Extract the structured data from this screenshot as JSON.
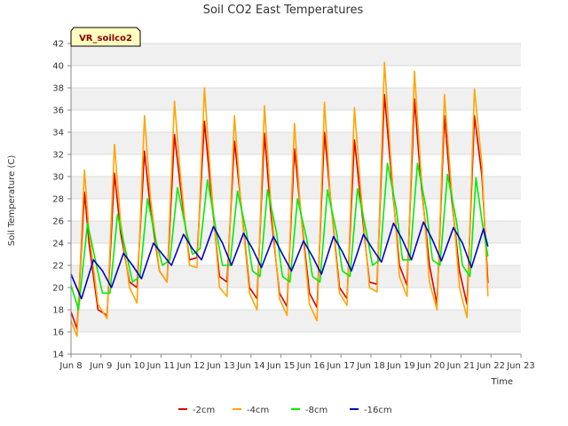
{
  "chart_data": {
    "type": "line",
    "title": "Soil CO2 East Temperatures",
    "xlabel": "Time",
    "ylabel": "Soil Temperature (C)",
    "badge": "VR_soilco2",
    "ylim": [
      14,
      42
    ],
    "yticks": [
      14,
      16,
      18,
      20,
      22,
      24,
      26,
      28,
      30,
      32,
      34,
      36,
      38,
      40,
      42
    ],
    "xlim": [
      0,
      15
    ],
    "xticks": [
      {
        "v": 0,
        "label": "Jun 8"
      },
      {
        "v": 1,
        "label": "Jun 9"
      },
      {
        "v": 2,
        "label": "Jun 10"
      },
      {
        "v": 3,
        "label": "Jun 11"
      },
      {
        "v": 4,
        "label": "Jun 12"
      },
      {
        "v": 5,
        "label": "Jun 13"
      },
      {
        "v": 6,
        "label": "Jun 14"
      },
      {
        "v": 7,
        "label": "Jun 15"
      },
      {
        "v": 8,
        "label": "Jun 16"
      },
      {
        "v": 9,
        "label": "Jun 17"
      },
      {
        "v": 10,
        "label": "Jun 18"
      },
      {
        "v": 11,
        "label": "Jun 19"
      },
      {
        "v": 12,
        "label": "Jun 20"
      },
      {
        "v": 13,
        "label": "Jun 21"
      },
      {
        "v": 14,
        "label": "Jun 22"
      },
      {
        "v": 15,
        "label": "Jun 23"
      }
    ],
    "series": [
      {
        "name": "-2cm",
        "color": "#dd0000",
        "x": [
          0,
          0.2,
          0.45,
          0.6,
          0.9,
          1.2,
          1.45,
          1.65,
          1.95,
          2.2,
          2.45,
          2.65,
          2.95,
          3.2,
          3.45,
          3.65,
          3.95,
          4.2,
          4.45,
          4.65,
          4.95,
          5.2,
          5.45,
          5.65,
          5.95,
          6.2,
          6.45,
          6.65,
          6.95,
          7.2,
          7.45,
          7.65,
          7.95,
          8.2,
          8.45,
          8.65,
          8.95,
          9.2,
          9.45,
          9.65,
          9.95,
          10.2,
          10.45,
          10.65,
          10.95,
          11.2,
          11.45,
          11.65,
          11.95,
          12.2,
          12.45,
          12.65,
          12.95,
          13.2,
          13.45,
          13.7,
          13.9
        ],
        "y": [
          17.8,
          16.3,
          28.6,
          24,
          18,
          17.5,
          30.3,
          25,
          20.5,
          20,
          32.3,
          27,
          21.5,
          20.5,
          33.8,
          29,
          22.5,
          22.7,
          35,
          29,
          21,
          20.5,
          33.2,
          28,
          20,
          19,
          33.9,
          27,
          19.5,
          18.3,
          32.5,
          27,
          19.5,
          18.2,
          34,
          28,
          20,
          19,
          33.3,
          28,
          20.5,
          20.3,
          37.4,
          31,
          22,
          20.2,
          37,
          30,
          22,
          18.5,
          35.5,
          29,
          21.5,
          18.5,
          35.5,
          30,
          20.4
        ]
      },
      {
        "name": "-4cm",
        "color": "#ffa500",
        "x": [
          0,
          0.2,
          0.45,
          0.6,
          0.9,
          1.2,
          1.45,
          1.65,
          1.95,
          2.2,
          2.45,
          2.65,
          2.95,
          3.2,
          3.45,
          3.65,
          3.95,
          4.2,
          4.45,
          4.65,
          4.95,
          5.2,
          5.45,
          5.65,
          5.95,
          6.2,
          6.45,
          6.65,
          6.95,
          7.2,
          7.45,
          7.65,
          7.95,
          8.2,
          8.45,
          8.65,
          8.95,
          9.2,
          9.45,
          9.65,
          9.95,
          10.2,
          10.45,
          10.65,
          10.95,
          11.2,
          11.45,
          11.65,
          11.95,
          12.2,
          12.45,
          12.65,
          12.95,
          13.2,
          13.45,
          13.7,
          13.9
        ],
        "y": [
          17,
          15.6,
          30.6,
          25,
          18.5,
          17.2,
          32.9,
          26,
          20,
          18.6,
          35.5,
          28,
          21.5,
          20.5,
          36.8,
          30,
          22,
          21.8,
          38,
          30,
          20,
          19.2,
          35.5,
          28,
          19.5,
          18,
          36.4,
          28,
          19,
          17.5,
          34.8,
          27,
          18.5,
          17,
          36.7,
          28,
          19.5,
          18.4,
          36.2,
          29,
          20,
          19.6,
          40.3,
          32,
          21,
          19.2,
          39.5,
          31,
          20.5,
          18,
          37.4,
          30,
          20,
          17.3,
          37.9,
          31,
          19.2
        ]
      },
      {
        "name": "-8cm",
        "color": "#00ee00",
        "x": [
          0,
          0.25,
          0.55,
          0.85,
          1.05,
          1.3,
          1.55,
          1.85,
          2.05,
          2.3,
          2.55,
          2.85,
          3.05,
          3.3,
          3.55,
          3.85,
          4.05,
          4.3,
          4.55,
          4.85,
          5.05,
          5.3,
          5.55,
          5.85,
          6.05,
          6.3,
          6.55,
          6.85,
          7.05,
          7.3,
          7.55,
          7.85,
          8.05,
          8.3,
          8.55,
          8.85,
          9.05,
          9.3,
          9.55,
          9.85,
          10.05,
          10.3,
          10.55,
          10.85,
          11.05,
          11.3,
          11.55,
          11.85,
          12.05,
          12.3,
          12.55,
          12.85,
          13.05,
          13.3,
          13.5,
          13.7,
          13.9
        ],
        "y": [
          20.2,
          18,
          25.8,
          22,
          19.5,
          19.5,
          26.6,
          23,
          20.5,
          21,
          28,
          24,
          22,
          22.5,
          29,
          25,
          23,
          23.5,
          29.7,
          25,
          22,
          22,
          28.7,
          25,
          21.5,
          21,
          28.8,
          25,
          21,
          20.5,
          28,
          24.5,
          21,
          20.5,
          28.8,
          25,
          21.5,
          21,
          28.9,
          25,
          22,
          22.5,
          31.2,
          27,
          22.5,
          22.5,
          31.2,
          27,
          22.5,
          22,
          30.2,
          26,
          22,
          21,
          29.9,
          26,
          22.8
        ]
      },
      {
        "name": "-16cm",
        "color": "#0000cc",
        "x": [
          0,
          0.35,
          0.75,
          1.05,
          1.35,
          1.75,
          2.05,
          2.35,
          2.75,
          3.05,
          3.35,
          3.75,
          4.05,
          4.35,
          4.75,
          5.05,
          5.35,
          5.75,
          6.05,
          6.35,
          6.75,
          7.05,
          7.35,
          7.75,
          8.05,
          8.35,
          8.75,
          9.05,
          9.35,
          9.75,
          10.05,
          10.35,
          10.75,
          11.05,
          11.35,
          11.75,
          12.05,
          12.35,
          12.75,
          13.05,
          13.35,
          13.75,
          13.9
        ],
        "y": [
          21.2,
          19,
          22.5,
          21.5,
          20,
          23.1,
          22,
          20.8,
          24,
          23,
          22,
          24.8,
          23.5,
          22.5,
          25.5,
          24,
          22,
          24.9,
          23.5,
          21.8,
          24.6,
          23,
          21.5,
          24.2,
          22.8,
          21.2,
          24.6,
          23.2,
          21.5,
          24.8,
          23.5,
          22.3,
          25.8,
          24.3,
          22.5,
          25.9,
          24.3,
          22.4,
          25.4,
          24,
          21.8,
          25.3,
          23.7
        ]
      }
    ]
  }
}
